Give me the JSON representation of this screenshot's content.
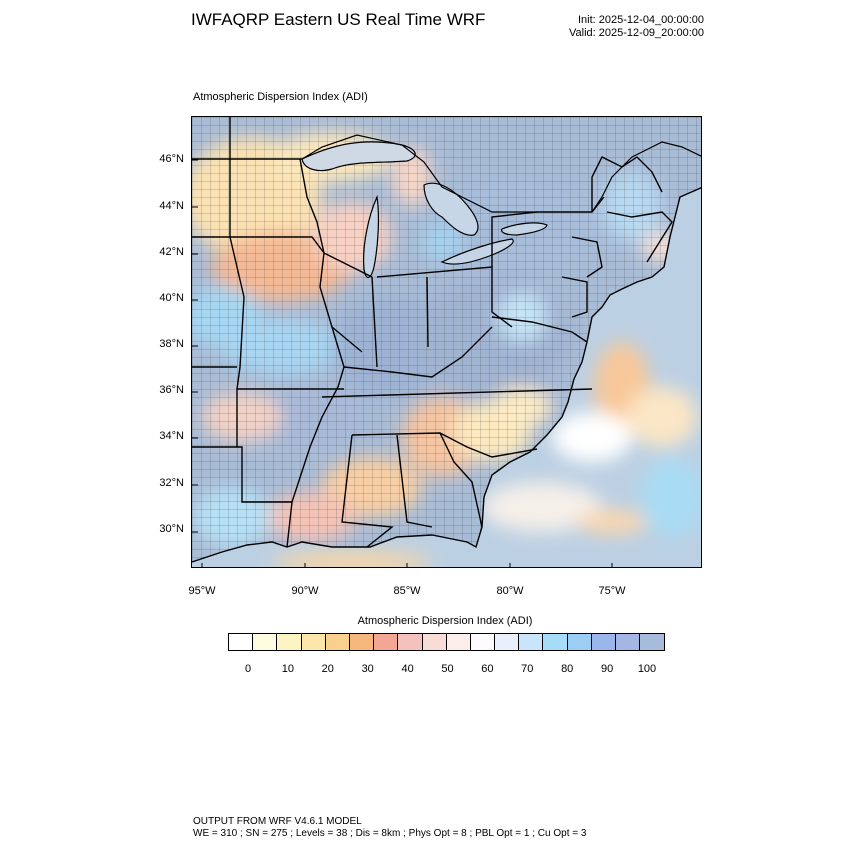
{
  "header": {
    "title": "IWFAQRP Eastern US Real Time WRF",
    "init": "Init: 2025-12-04_00:00:00",
    "valid": "Valid: 2025-12-09_20:00:00"
  },
  "map": {
    "field_label": "Atmospheric Dispersion Index   (ADI)",
    "lat_labels": [
      "46°N",
      "44°N",
      "42°N",
      "40°N",
      "38°N",
      "36°N",
      "34°N",
      "32°N",
      "30°N"
    ],
    "lon_labels": [
      "95°W",
      "90°W",
      "85°W",
      "80°W",
      "75°W"
    ],
    "extent": {
      "lon_min": -95.4,
      "lon_max": -70.5,
      "lat_min": 28.5,
      "lat_max": 47.8
    }
  },
  "colorbar": {
    "title": "Atmospheric Dispersion Index  (ADI)",
    "tick_labels": [
      "0",
      "10",
      "20",
      "30",
      "40",
      "50",
      "60",
      "70",
      "80",
      "90",
      "100"
    ],
    "colors": [
      "#ffffff",
      "#fefce0",
      "#fdf4c4",
      "#fce6aa",
      "#f9d18e",
      "#f6b77c",
      "#f3a693",
      "#f4c2bd",
      "#f9dcd6",
      "#fceeea",
      "#fdfbfd",
      "#eaf0fb",
      "#c9e5fb",
      "#a7dcf8",
      "#9ccdf4",
      "#9bb6ea",
      "#a5b5e4",
      "#a7bbda"
    ]
  },
  "footer": {
    "line1": "OUTPUT FROM WRF V4.6.1 MODEL",
    "line2": "WE = 310 ; SN = 275 ; Levels = 38 ; Dis = 8km ; Phys Opt = 8 ; PBL Opt = 1 ; Cu Opt = 3"
  }
}
